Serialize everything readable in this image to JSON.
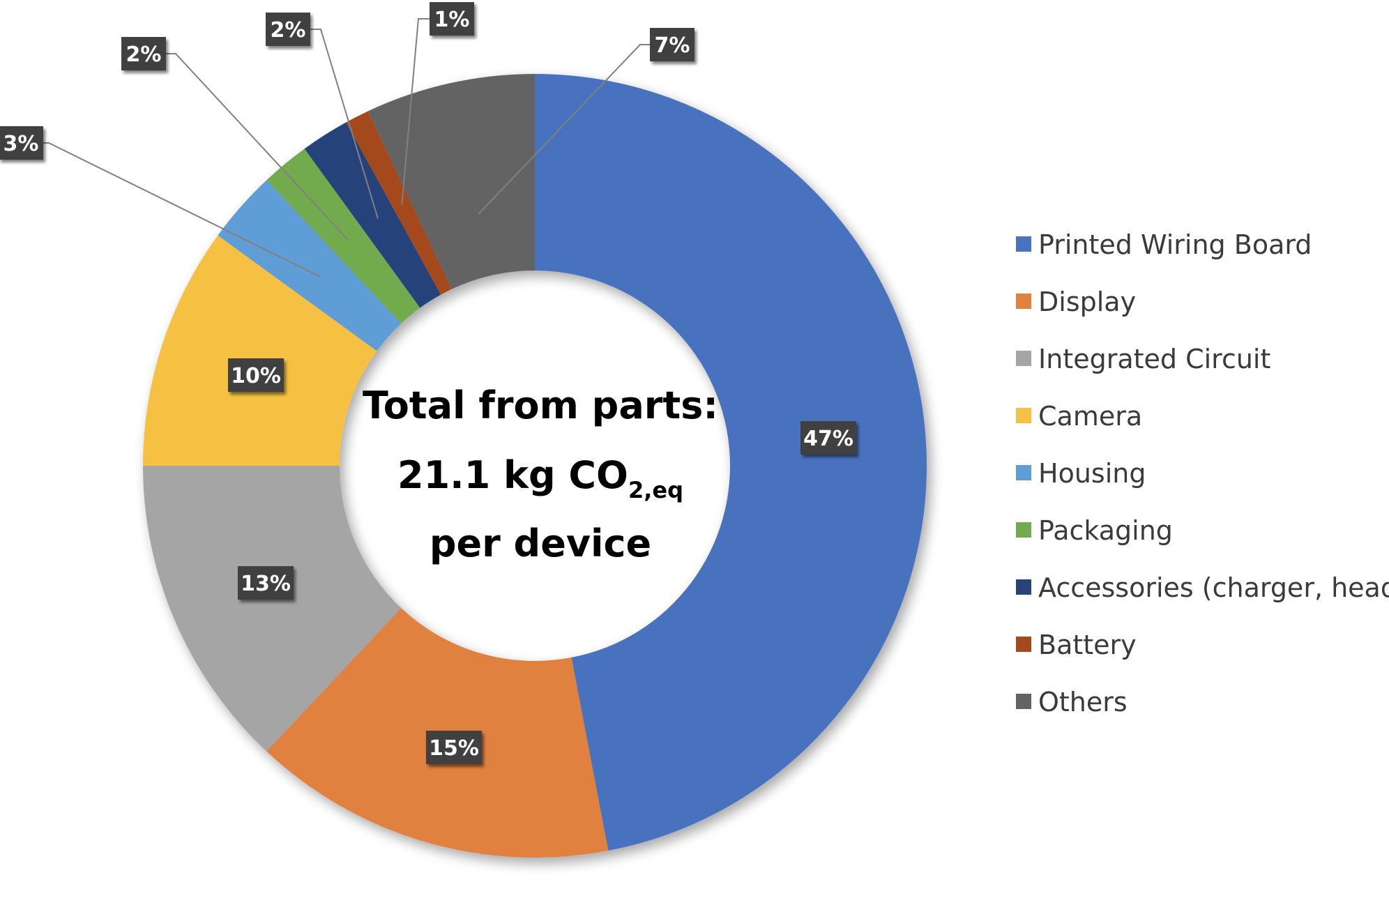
{
  "chart_data": {
    "type": "donut",
    "title": "",
    "center_text": {
      "line1": "Total from parts:",
      "line2_main": "21.1 kg CO",
      "line2_sub": "2,eq",
      "line3": "per device"
    },
    "series": [
      {
        "name": "Printed Wiring Board",
        "value": 47,
        "label": "47%",
        "color": "#4a72be"
      },
      {
        "name": "Display",
        "value": 15,
        "label": "15%",
        "color": "#e1813f"
      },
      {
        "name": "Integrated Circuit",
        "value": 13,
        "label": "13%",
        "color": "#a5a5a5"
      },
      {
        "name": "Camera",
        "value": 10,
        "label": "10%",
        "color": "#f6c142"
      },
      {
        "name": "Housing",
        "value": 3,
        "label": "3%",
        "color": "#5f9dd6"
      },
      {
        "name": "Packaging",
        "value": 2,
        "label": "2%",
        "color": "#72ab4d"
      },
      {
        "name": "Accessories (charger, headset)",
        "value": 2,
        "label": "2%",
        "color": "#27437a"
      },
      {
        "name": "Battery",
        "value": 1,
        "label": "1%",
        "color": "#a34a1a"
      },
      {
        "name": "Others",
        "value": 7,
        "label": "7%",
        "color": "#636363"
      }
    ],
    "legend_position": "right",
    "label_box_color": "#404040"
  }
}
